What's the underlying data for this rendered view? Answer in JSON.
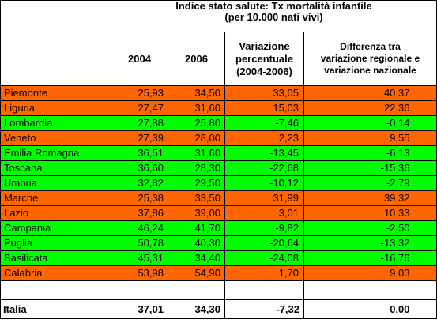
{
  "header": {
    "title_line1": "Indice stato salute: Tx mortalità infantile",
    "title_line2": "(per 10.000 nati vivi)"
  },
  "columns": {
    "c2004": "2004",
    "c2006": "2006",
    "variazione_line1": "Variazione",
    "variazione_line2": "percentuale",
    "variazione_line3": "(2004-2006)",
    "differenza_line1": "Differenza tra",
    "differenza_line2": "variazione regionale e",
    "differenza_line3": "variazione nazionale"
  },
  "colors": {
    "above": "#ff6600",
    "below": "#00ff00"
  },
  "rows": [
    {
      "name": "Piemonte",
      "y2004": "25,93",
      "y2006": "34,50",
      "var": "33,05",
      "diff": "40,37",
      "status": "above"
    },
    {
      "name": "Liguria",
      "y2004": "27,47",
      "y2006": "31,60",
      "var": "15,03",
      "diff": "22,36",
      "status": "above"
    },
    {
      "name": "Lombardia",
      "y2004": "27,88",
      "y2006": "25,80",
      "var": "-7,46",
      "diff": "-0,14",
      "status": "below"
    },
    {
      "name": "Veneto",
      "y2004": "27,39",
      "y2006": "28,00",
      "var": "2,23",
      "diff": "9,55",
      "status": "above"
    },
    {
      "name": "Emilia Romagna",
      "y2004": "36,51",
      "y2006": "31,60",
      "var": "-13,45",
      "diff": "-6,13",
      "status": "below"
    },
    {
      "name": "Toscana",
      "y2004": "36,60",
      "y2006": "28,30",
      "var": "-22,68",
      "diff": "-15,36",
      "status": "below"
    },
    {
      "name": "Umbria",
      "y2004": "32,82",
      "y2006": "29,50",
      "var": "-10,12",
      "diff": "-2,79",
      "status": "below"
    },
    {
      "name": "Marche",
      "y2004": "25,38",
      "y2006": "33,50",
      "var": "31,99",
      "diff": "39,32",
      "status": "above"
    },
    {
      "name": "Lazio",
      "y2004": "37,86",
      "y2006": "39,00",
      "var": "3,01",
      "diff": "10,33",
      "status": "above"
    },
    {
      "name": "Campania",
      "y2004": "46,24",
      "y2006": "41,70",
      "var": "-9,82",
      "diff": "-2,50",
      "status": "below"
    },
    {
      "name": "Puglia",
      "y2004": "50,78",
      "y2006": "40,30",
      "var": "-20,64",
      "diff": "-13,32",
      "status": "below"
    },
    {
      "name": "Basilicata",
      "y2004": "45,31",
      "y2006": "34,40",
      "var": "-24,08",
      "diff": "-16,76",
      "status": "below"
    },
    {
      "name": "Calabria",
      "y2004": "53,98",
      "y2006": "54,90",
      "var": "1,70",
      "diff": "9,03",
      "status": "above"
    }
  ],
  "total": {
    "name": "Italia",
    "y2004": "37,01",
    "y2006": "34,30",
    "var": "-7,32",
    "diff": "0,00"
  }
}
